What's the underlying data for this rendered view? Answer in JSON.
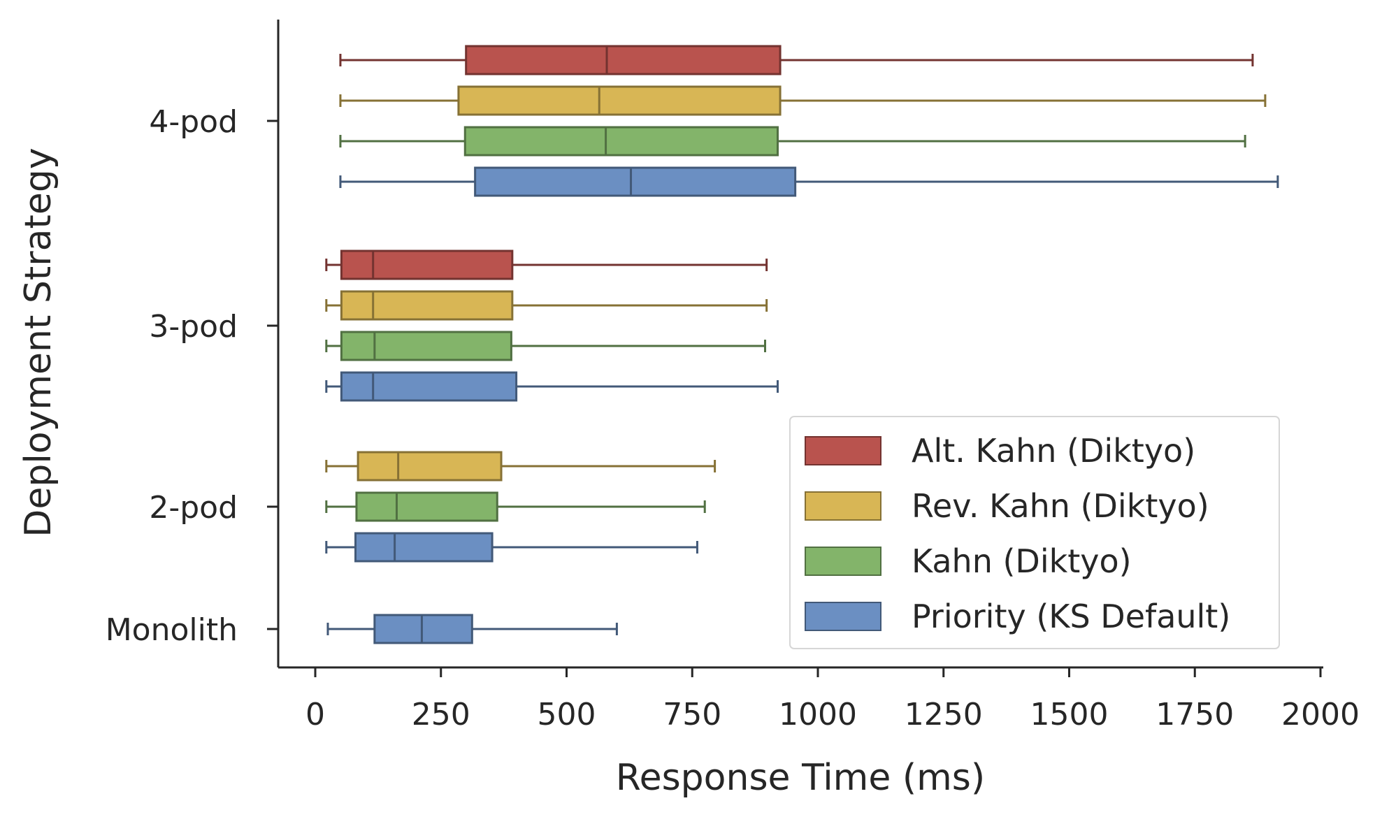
{
  "chart_data": {
    "type": "boxplot",
    "orientation": "horizontal",
    "xlabel": "Response Time (ms)",
    "ylabel": "Deployment Strategy",
    "xlim": [
      -70,
      2005
    ],
    "xticks": [
      "0",
      "250",
      "500",
      "750",
      "1000",
      "1250",
      "1500",
      "1750",
      "2000"
    ],
    "legend_position": "bottom-right",
    "grid": false,
    "series": [
      {
        "name": "Alt. Kahn (Diktyo)",
        "color": "#b9534e"
      },
      {
        "name": "Rev. Kahn (Diktyo)",
        "color": "#d8b655"
      },
      {
        "name": "Kahn (Diktyo)",
        "color": "#83b46a"
      },
      {
        "name": "Priority (KS Default)",
        "color": "#6b8fc2"
      }
    ],
    "groups": [
      {
        "label": "4-pod",
        "boxes": [
          {
            "series": 0,
            "whisker_low": 50,
            "q1": 300,
            "median": 580,
            "q3": 925,
            "whisker_high": 1865
          },
          {
            "series": 1,
            "whisker_low": 50,
            "q1": 285,
            "median": 565,
            "q3": 925,
            "whisker_high": 1890
          },
          {
            "series": 2,
            "whisker_low": 50,
            "q1": 298,
            "median": 578,
            "q3": 920,
            "whisker_high": 1850
          },
          {
            "series": 3,
            "whisker_low": 50,
            "q1": 318,
            "median": 628,
            "q3": 955,
            "whisker_high": 1915
          }
        ]
      },
      {
        "label": "3-pod",
        "boxes": [
          {
            "series": 0,
            "whisker_low": 22,
            "q1": 52,
            "median": 115,
            "q3": 392,
            "whisker_high": 898
          },
          {
            "series": 1,
            "whisker_low": 22,
            "q1": 52,
            "median": 115,
            "q3": 392,
            "whisker_high": 898
          },
          {
            "series": 2,
            "whisker_low": 22,
            "q1": 52,
            "median": 118,
            "q3": 390,
            "whisker_high": 895
          },
          {
            "series": 3,
            "whisker_low": 22,
            "q1": 52,
            "median": 115,
            "q3": 400,
            "whisker_high": 920
          }
        ]
      },
      {
        "label": "2-pod",
        "boxes": [
          {
            "series": 1,
            "whisker_low": 22,
            "q1": 85,
            "median": 165,
            "q3": 370,
            "whisker_high": 795
          },
          {
            "series": 2,
            "whisker_low": 22,
            "q1": 82,
            "median": 162,
            "q3": 362,
            "whisker_high": 775
          },
          {
            "series": 3,
            "whisker_low": 22,
            "q1": 80,
            "median": 158,
            "q3": 352,
            "whisker_high": 760
          }
        ]
      },
      {
        "label": "Monolith",
        "boxes": [
          {
            "series": 3,
            "whisker_low": 25,
            "q1": 118,
            "median": 212,
            "q3": 312,
            "whisker_high": 600
          }
        ]
      }
    ]
  }
}
